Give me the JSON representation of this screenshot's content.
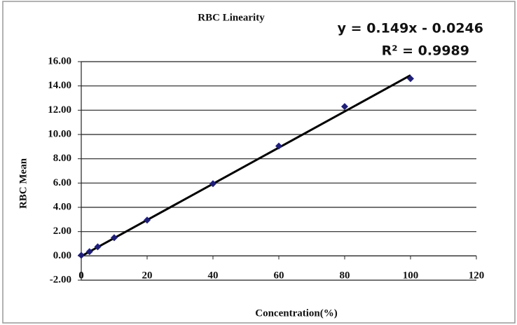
{
  "chart_data": {
    "type": "scatter",
    "title": "RBC Linearity",
    "x_label": "Concentration(%)",
    "y_label": "RBC Mean",
    "x": [
      0,
      2.5,
      5,
      10,
      20,
      40,
      60,
      80,
      100
    ],
    "values": [
      0.05,
      0.35,
      0.75,
      1.5,
      2.95,
      5.95,
      9.05,
      12.3,
      14.6
    ],
    "color": "#1f1f78",
    "trendline": {
      "slope": 0.149,
      "intercept": -0.0246,
      "color": "#000000",
      "equation": "y = 0.149x - 0.0246",
      "r_squared": "R² = 0.9989"
    },
    "xlim": [
      0,
      120
    ],
    "xticks": [
      0,
      20,
      40,
      60,
      80,
      100,
      120
    ],
    "ylim": [
      -2,
      16
    ],
    "yticks": [
      {
        "value": -2,
        "label": "-2.00"
      },
      {
        "value": 0,
        "label": "0.00"
      },
      {
        "value": 2,
        "label": "2.00"
      },
      {
        "value": 4,
        "label": "4.00"
      },
      {
        "value": 6,
        "label": "6.00"
      },
      {
        "value": 8,
        "label": "8.00"
      },
      {
        "value": 10,
        "label": "10.00"
      },
      {
        "value": 12,
        "label": "12.00"
      },
      {
        "value": 14,
        "label": "14.00"
      },
      {
        "value": 16,
        "label": "16.00"
      }
    ],
    "grid": true
  }
}
